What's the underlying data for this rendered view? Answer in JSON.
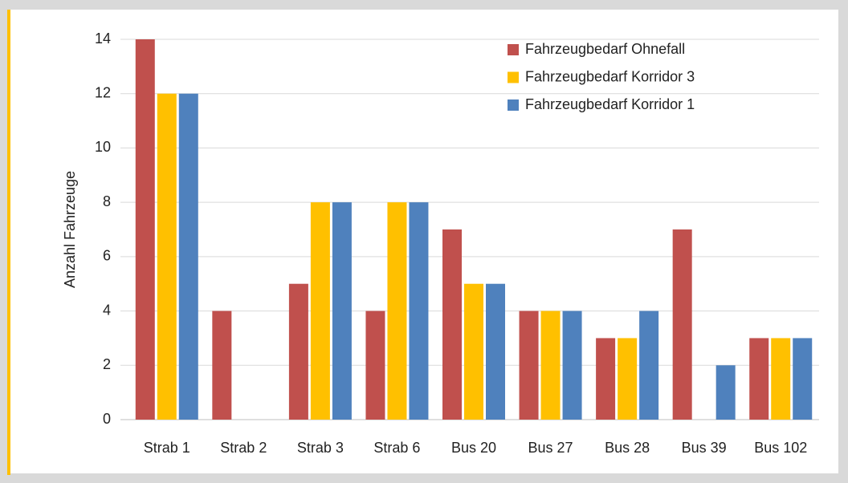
{
  "chart_data": {
    "type": "bar",
    "y_label": "Anzahl Fahrzeuge",
    "categories": [
      "Strab 1",
      "Strab 2",
      "Strab 3",
      "Strab 6",
      "Bus 20",
      "Bus 27",
      "Bus 28",
      "Bus 39",
      "Bus 102"
    ],
    "series": [
      {
        "name": "Fahrzeugbedarf Ohnefall",
        "color": "#c0504d",
        "values": [
          14,
          4,
          5,
          4,
          7,
          4,
          3,
          7,
          3
        ]
      },
      {
        "name": "Fahrzeugbedarf Korridor 3",
        "color": "#ffc000",
        "values": [
          12,
          0,
          8,
          8,
          5,
          4,
          3,
          0,
          3
        ]
      },
      {
        "name": "Fahrzeugbedarf Korridor 1",
        "color": "#4f81bd",
        "values": [
          12,
          0,
          8,
          8,
          5,
          4,
          4,
          2,
          3
        ]
      }
    ],
    "ylim": [
      0,
      14
    ],
    "yticks": [
      0,
      2,
      4,
      6,
      8,
      10,
      12,
      14
    ],
    "grid": true,
    "legend": "top-right"
  }
}
